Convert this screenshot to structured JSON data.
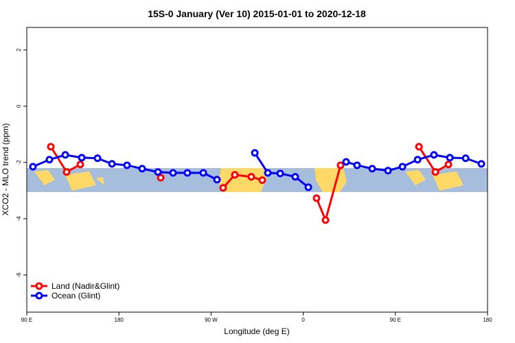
{
  "chart_data": {
    "type": "line",
    "title": "15S-0 January (Ver 10)   2015-01-01 to 2020-12-18",
    "xlabel": "Longitude (deg E)",
    "ylabel": "XCO2 - MLO trend (ppm)",
    "xlim": [
      90,
      540
    ],
    "ylim": [
      -7.32,
      2.8
    ],
    "xticks": [
      {
        "value": 90,
        "label": "90 E"
      },
      180,
      {
        "value": 270,
        "label": "90 W"
      },
      {
        "value": 360,
        "label": "0"
      },
      {
        "value": 450,
        "label": "90 E"
      },
      {
        "value": 540,
        "label": "180"
      }
    ],
    "yticks": [
      -6,
      -4,
      -2,
      0,
      2
    ],
    "legend": "bottom-left",
    "series": [
      {
        "name": "Land (Nadir&Glint)",
        "color": "#ff0000",
        "x": [
          113.5,
          128.9,
          142.3,
          null,
          220.8,
          null,
          281.8,
          293.2,
          309.3,
          320.0,
          null,
          373.0,
          381.8,
          396.5,
          null,
          473.0,
          489.1,
          501.8
        ],
        "values": [
          -1.44,
          -2.34,
          -2.07,
          null,
          -2.54,
          null,
          -2.9,
          -2.44,
          -2.51,
          -2.63,
          null,
          -3.27,
          -4.05,
          -2.1,
          null,
          -1.44,
          -2.34,
          -2.07
        ]
      },
      {
        "name": "Ocean (Glint)",
        "color": "#0000ff",
        "x": [
          96.0,
          112.1,
          127.6,
          143.7,
          159.1,
          173.2,
          187.9,
          202.7,
          218.1,
          232.9,
          246.9,
          262.4,
          275.8,
          null,
          312.7,
          325.4,
          337.5,
          352.2,
          365.0,
          null,
          401.9,
          412.6,
          427.4,
          442.8,
          456.9,
          471.7,
          487.7,
          503.2,
          518.6,
          534.0
        ],
        "values": [
          -2.15,
          -1.9,
          -1.73,
          -1.83,
          -1.85,
          -2.05,
          -2.1,
          -2.22,
          -2.34,
          -2.37,
          -2.37,
          -2.37,
          -2.61,
          null,
          -1.66,
          -2.37,
          -2.39,
          -2.51,
          -2.88,
          null,
          -1.98,
          -2.1,
          -2.22,
          -2.29,
          -2.15,
          -1.9,
          -1.73,
          -1.83,
          -1.85,
          -2.05
        ]
      }
    ]
  }
}
